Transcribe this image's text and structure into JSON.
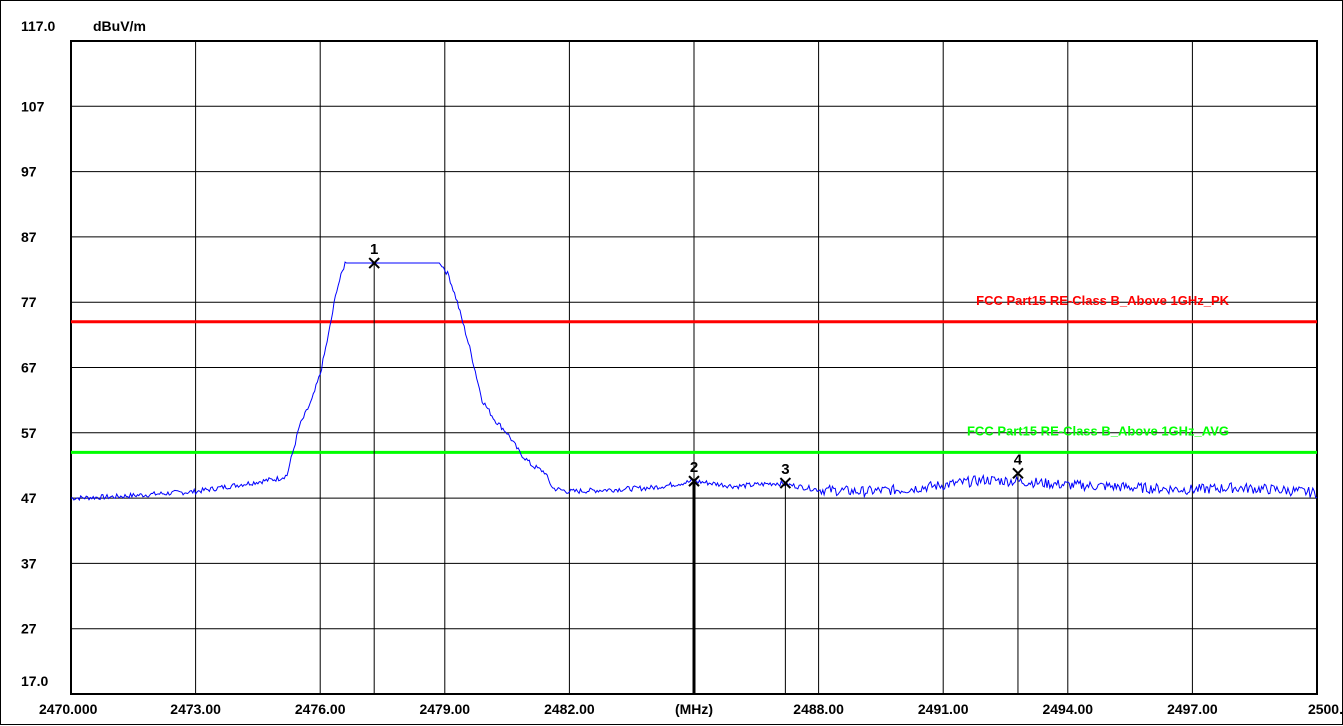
{
  "chart_data": {
    "type": "line",
    "title": "",
    "y_unit": "dBuV/m",
    "x_unit": "(MHz)",
    "xlim": [
      2470.0,
      2500.0
    ],
    "ylim": [
      17.0,
      117.0
    ],
    "x_tick_values": [
      2470.0,
      2473.0,
      2476.0,
      2479.0,
      2482.0,
      2485.0,
      2488.0,
      2491.0,
      2494.0,
      2497.0,
      2500.0
    ],
    "x_tick_labels": [
      "2470.000",
      "2473.00",
      "2476.00",
      "2479.00",
      "2482.00",
      "(MHz)",
      "2488.00",
      "2491.00",
      "2494.00",
      "2497.00",
      "2500."
    ],
    "y_tick_values": [
      117.0,
      107,
      97,
      87,
      77,
      67,
      57,
      47,
      37,
      27,
      17.0
    ],
    "y_tick_labels": [
      "117.0",
      "107",
      "97",
      "87",
      "77",
      "67",
      "57",
      "47",
      "37",
      "27",
      "17.0"
    ],
    "grid": true,
    "series": [
      {
        "color": "#0000ff",
        "x": [
          2470.0,
          2471.0,
          2472.0,
          2473.0,
          2474.0,
          2475.0,
          2475.2,
          2475.5,
          2475.8,
          2476.0,
          2476.2,
          2476.4,
          2476.6,
          2477.0,
          2477.5,
          2478.0,
          2478.5,
          2478.9,
          2479.1,
          2479.3,
          2479.6,
          2479.9,
          2480.2,
          2480.5,
          2480.8,
          2481.1,
          2481.4,
          2481.6,
          2482.0,
          2483.0,
          2484.0,
          2485.0,
          2486.0,
          2487.0,
          2488.0,
          2489.0,
          2490.0,
          2491.0,
          2492.0,
          2493.0,
          2494.0,
          2495.0,
          2496.0,
          2497.0,
          2498.0,
          2499.0,
          2500.0
        ],
        "values": [
          47.0,
          47.2,
          47.6,
          48.0,
          49.0,
          50.0,
          50.5,
          58.0,
          62.0,
          66.0,
          72.0,
          79.0,
          83.0,
          83.0,
          83.0,
          83.0,
          83.0,
          83.0,
          81.0,
          77.0,
          70.0,
          62.0,
          59.0,
          57.0,
          54.0,
          52.0,
          51.0,
          48.5,
          48.0,
          48.3,
          48.6,
          49.6,
          48.8,
          49.3,
          48.3,
          48.0,
          48.3,
          49.0,
          49.8,
          49.5,
          49.0,
          48.8,
          48.5,
          48.3,
          48.6,
          48.3,
          47.8
        ]
      }
    ],
    "limit_lines": [
      {
        "name": "FCC Part15 RE-Class B_Above 1GHz_PK",
        "value": 74.0,
        "color": "#ff0000"
      },
      {
        "name": "FCC Part15 RE-Class B_Above 1GHz_AVG",
        "value": 54.0,
        "color": "#00ff00"
      }
    ],
    "markers": [
      {
        "label": "1",
        "x": 2477.3,
        "y": 83.0
      },
      {
        "label": "2",
        "x": 2485.0,
        "y": 49.6
      },
      {
        "label": "3",
        "x": 2487.2,
        "y": 49.3
      },
      {
        "label": "4",
        "x": 2492.8,
        "y": 50.8
      }
    ]
  }
}
